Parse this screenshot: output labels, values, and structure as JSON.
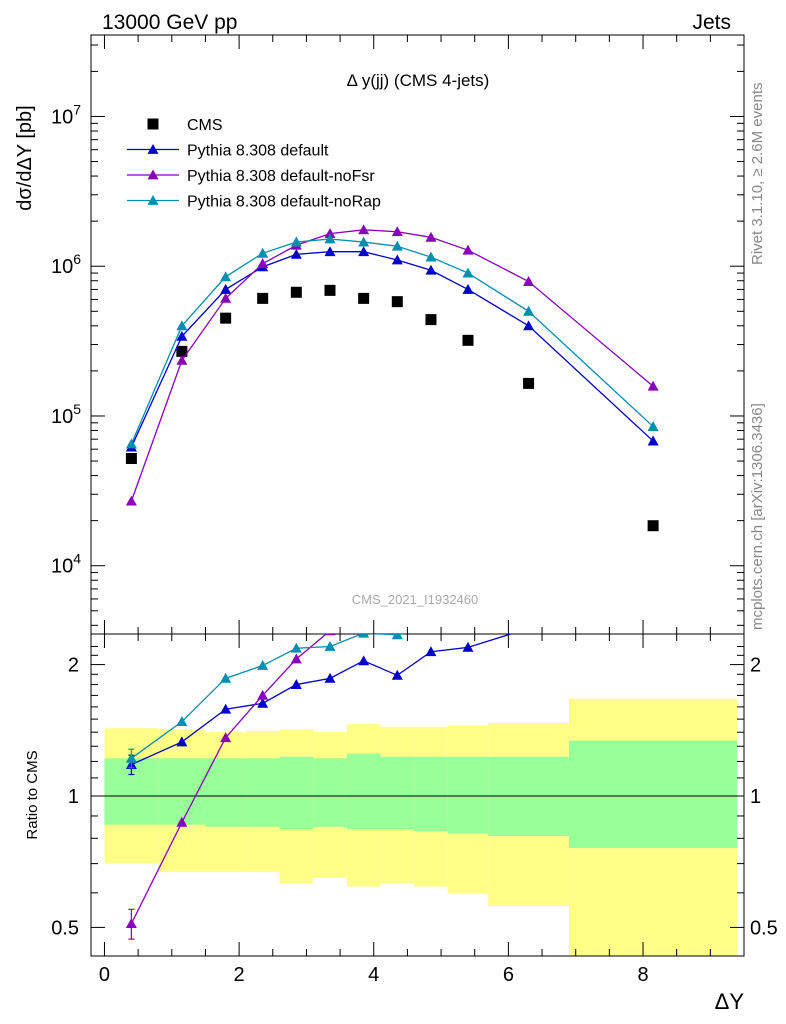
{
  "header": {
    "left": "13000 GeV pp",
    "right": "Jets",
    "side_top": "Rivet 3.1.10, ≥ 2.6M events",
    "side_bottom": "mcplots.cern.ch [arXiv:1306.3436]",
    "watermark": "CMS_2021_I1932460"
  },
  "chart_data": [
    {
      "type": "scatter",
      "panel": "main",
      "title": "Δ y(jj) (CMS 4-jets)",
      "ylabel": "dσ/dΔY [pb]",
      "yscale": "log",
      "xlim": [
        -0.2,
        9.5
      ],
      "ylim": [
        3500,
        35000000
      ],
      "y_ticks": [
        {
          "value": 10000,
          "label": "10",
          "exp": "4"
        },
        {
          "value": 100000,
          "label": "10",
          "exp": "5"
        },
        {
          "value": 1000000,
          "label": "10",
          "exp": "6"
        },
        {
          "value": 10000000,
          "label": "10",
          "exp": "7"
        }
      ],
      "legend": {
        "placement": "top-left"
      },
      "series": [
        {
          "name": "CMS",
          "color": "#000000",
          "marker": "square",
          "line": false,
          "x": [
            0.4,
            1.15,
            1.8,
            2.35,
            2.85,
            3.35,
            3.85,
            4.35,
            4.85,
            5.4,
            6.3,
            8.15
          ],
          "y": [
            52000,
            270000,
            450000,
            610000,
            670000,
            690000,
            610000,
            580000,
            440000,
            320000,
            165000,
            18500
          ]
        },
        {
          "name": "Pythia 8.308 default",
          "color": "#0000cc",
          "marker": "triangle",
          "line": true,
          "x": [
            0.4,
            1.15,
            1.8,
            2.35,
            2.85,
            3.35,
            3.85,
            4.35,
            4.85,
            5.4,
            6.3,
            8.15
          ],
          "y": [
            62000,
            340000,
            700000,
            990000,
            1200000,
            1250000,
            1250000,
            1100000,
            940000,
            700000,
            400000,
            68000
          ]
        },
        {
          "name": "Pythia 8.308 default-noFsr",
          "color": "#8800bb",
          "marker": "triangle",
          "line": true,
          "x": [
            0.4,
            1.15,
            1.8,
            2.35,
            2.85,
            3.35,
            3.85,
            4.35,
            4.85,
            5.4,
            6.3,
            8.15
          ],
          "y": [
            27000,
            235000,
            610000,
            1040000,
            1380000,
            1650000,
            1750000,
            1700000,
            1560000,
            1280000,
            790000,
            158000
          ]
        },
        {
          "name": "Pythia 8.308 default-noRap",
          "color": "#008fb0",
          "marker": "triangle",
          "line": true,
          "x": [
            0.4,
            1.15,
            1.8,
            2.35,
            2.85,
            3.35,
            3.85,
            4.35,
            4.85,
            5.4,
            6.3,
            8.15
          ],
          "y": [
            65000,
            400000,
            850000,
            1220000,
            1450000,
            1520000,
            1450000,
            1360000,
            1150000,
            900000,
            500000,
            85000
          ]
        }
      ]
    },
    {
      "type": "line",
      "panel": "ratio",
      "ylabel": "Ratio to CMS",
      "xlabel": "ΔY",
      "yscale": "log",
      "xlim": [
        -0.2,
        9.5
      ],
      "ylim": [
        0.43,
        2.35
      ],
      "x_ticks": [
        {
          "value": 0,
          "label": "0"
        },
        {
          "value": 2,
          "label": "2"
        },
        {
          "value": 4,
          "label": "4"
        },
        {
          "value": 6,
          "label": "6"
        },
        {
          "value": 8,
          "label": "8"
        }
      ],
      "y_ticks": [
        {
          "value": 0.5,
          "label": "0.5"
        },
        {
          "value": 1,
          "label": "1"
        },
        {
          "value": 2,
          "label": "2"
        }
      ],
      "uncertainty_bands": {
        "bins": [
          [
            0.0,
            0.8,
            0.7,
            1.43,
            0.86,
            1.22
          ],
          [
            0.8,
            1.5,
            0.67,
            1.42,
            0.86,
            1.22
          ],
          [
            1.5,
            2.1,
            0.67,
            1.4,
            0.85,
            1.22
          ],
          [
            2.1,
            2.6,
            0.67,
            1.41,
            0.85,
            1.22
          ],
          [
            2.6,
            3.1,
            0.63,
            1.42,
            0.84,
            1.23
          ],
          [
            3.1,
            3.6,
            0.65,
            1.4,
            0.85,
            1.22
          ],
          [
            3.6,
            4.1,
            0.62,
            1.46,
            0.84,
            1.25
          ],
          [
            4.1,
            4.6,
            0.63,
            1.44,
            0.84,
            1.23
          ],
          [
            4.6,
            5.1,
            0.62,
            1.44,
            0.83,
            1.23
          ],
          [
            5.1,
            5.7,
            0.6,
            1.45,
            0.82,
            1.23
          ],
          [
            5.7,
            6.9,
            0.56,
            1.47,
            0.81,
            1.23
          ],
          [
            6.9,
            9.4,
            0.42,
            1.67,
            0.76,
            1.34
          ]
        ],
        "outer_color": "#ffff88",
        "inner_color": "#99ff99"
      },
      "series": [
        {
          "name": "Pythia 8.308 default",
          "color": "#0000cc",
          "x": [
            0.4,
            1.15,
            1.8,
            2.35,
            2.85,
            3.35,
            3.85,
            4.35,
            4.85,
            5.4,
            6.3
          ],
          "y": [
            1.18,
            1.33,
            1.58,
            1.63,
            1.8,
            1.86,
            2.04,
            1.89,
            2.14,
            2.19,
            2.42
          ],
          "yerr": [
            0.06,
            0,
            0,
            0,
            0,
            0,
            0,
            0,
            0,
            0,
            0
          ]
        },
        {
          "name": "Pythia 8.308 default-noFsr",
          "color": "#8800bb",
          "x": [
            0.4,
            1.15,
            1.8,
            2.35,
            2.85,
            3.35
          ],
          "y": [
            0.51,
            0.87,
            1.36,
            1.7,
            2.06,
            2.39
          ],
          "yerr": [
            0.04,
            0,
            0,
            0,
            0,
            0
          ]
        },
        {
          "name": "Pythia 8.308 default-noRap",
          "color": "#008fb0",
          "x": [
            0.4,
            1.15,
            1.8,
            2.35,
            2.85,
            3.35,
            3.85,
            4.35,
            4.85
          ],
          "y": [
            1.22,
            1.48,
            1.86,
            1.99,
            2.18,
            2.2,
            2.36,
            2.34,
            2.42
          ],
          "yerr": [
            0.06,
            0,
            0,
            0,
            0,
            0,
            0,
            0,
            0
          ]
        }
      ]
    }
  ]
}
